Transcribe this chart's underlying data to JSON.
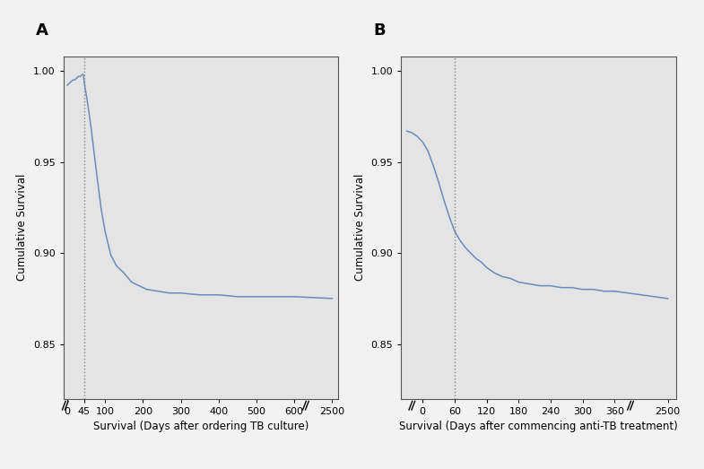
{
  "panel_A": {
    "label": "A",
    "xlabel": "Survival (Days after ordering TB culture)",
    "ylabel": "Cumulative Survival",
    "vline_x": 45,
    "ylim": [
      0.82,
      1.008
    ],
    "yticks": [
      0.85,
      0.9,
      0.95,
      1.0
    ],
    "xticks_main": [
      0,
      45,
      100,
      200,
      300,
      400,
      500,
      600
    ],
    "xtick_far": 2500,
    "curve_color": "#6b8bbf",
    "bg_color": "#e4e4e4",
    "curve_points_x": [
      0,
      5,
      10,
      15,
      20,
      25,
      30,
      35,
      40,
      43,
      45,
      48,
      52,
      57,
      63,
      70,
      80,
      90,
      100,
      115,
      130,
      150,
      170,
      190,
      210,
      240,
      270,
      300,
      350,
      400,
      450,
      500,
      550,
      600,
      2500
    ],
    "curve_points_y": [
      0.992,
      0.993,
      0.994,
      0.995,
      0.995,
      0.996,
      0.997,
      0.997,
      0.998,
      0.998,
      0.994,
      0.99,
      0.985,
      0.978,
      0.969,
      0.957,
      0.94,
      0.924,
      0.912,
      0.899,
      0.893,
      0.889,
      0.884,
      0.882,
      0.88,
      0.879,
      0.878,
      0.878,
      0.877,
      0.877,
      0.876,
      0.876,
      0.876,
      0.876,
      0.875
    ]
  },
  "panel_B": {
    "label": "B",
    "xlabel": "Survival (Days after commencing anti-TB treatment)",
    "ylabel": "Cumulative Survival",
    "vline_x": 60,
    "ylim": [
      0.82,
      1.008
    ],
    "yticks": [
      0.85,
      0.9,
      0.95,
      1.0
    ],
    "xticks_main": [
      0,
      60,
      120,
      180,
      240,
      300,
      360
    ],
    "xtick_far": 2500,
    "curve_color": "#6b8bbf",
    "bg_color": "#e4e4e4",
    "curve_points_x": [
      -30,
      -20,
      -10,
      0,
      10,
      20,
      30,
      40,
      50,
      60,
      70,
      80,
      90,
      100,
      110,
      120,
      135,
      150,
      165,
      180,
      200,
      220,
      240,
      260,
      280,
      300,
      320,
      340,
      360,
      2500
    ],
    "curve_points_y": [
      0.967,
      0.966,
      0.964,
      0.961,
      0.956,
      0.948,
      0.939,
      0.929,
      0.92,
      0.912,
      0.907,
      0.903,
      0.9,
      0.897,
      0.895,
      0.892,
      0.889,
      0.887,
      0.886,
      0.884,
      0.883,
      0.882,
      0.882,
      0.881,
      0.881,
      0.88,
      0.88,
      0.879,
      0.879,
      0.875
    ]
  },
  "figure_bg": "#f2f2f2",
  "panel_bg": "#e4e4e4"
}
